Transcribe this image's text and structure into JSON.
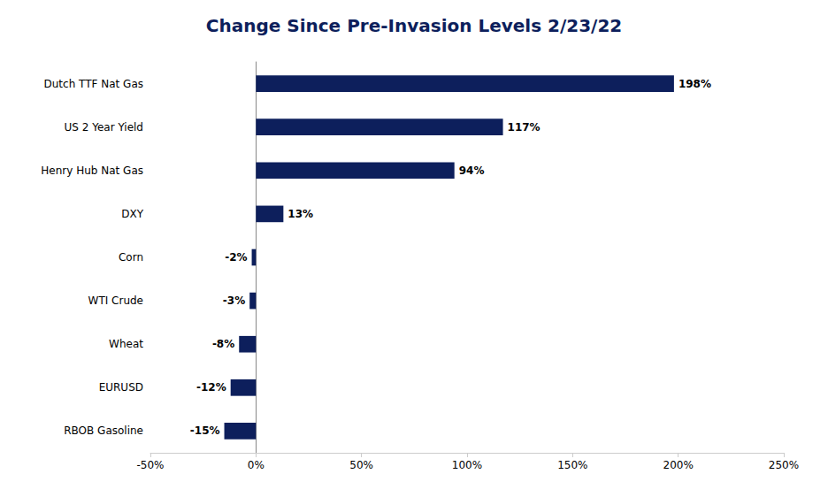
{
  "chart_data": {
    "type": "bar",
    "orientation": "horizontal",
    "title": "Change Since Pre-Invasion Levels 2/23/22",
    "categories": [
      "RBOB Gasoline",
      "EURUSD",
      "Wheat",
      "WTI Crude",
      "Corn",
      "DXY",
      "Henry Hub Nat Gas",
      "US 2 Year Yield",
      "Dutch TTF Nat Gas"
    ],
    "values": [
      -15,
      -12,
      -8,
      -3,
      -2,
      13,
      94,
      117,
      198
    ],
    "value_labels": [
      "-15%",
      "-12%",
      "-8%",
      "-3%",
      "-2%",
      "13%",
      "94%",
      "117%",
      "198%"
    ],
    "data_labels": true,
    "color": "#0d1f5c",
    "xlim": [
      -50,
      250
    ],
    "xticks": [
      {
        "value": -50,
        "label": "-50%"
      },
      {
        "value": 0,
        "label": "0%"
      },
      {
        "value": 50,
        "label": "50%"
      },
      {
        "value": 100,
        "label": "100%"
      },
      {
        "value": 150,
        "label": "150%"
      },
      {
        "value": 200,
        "label": "200%"
      },
      {
        "value": 250,
        "label": "250%"
      }
    ],
    "grid": false
  }
}
